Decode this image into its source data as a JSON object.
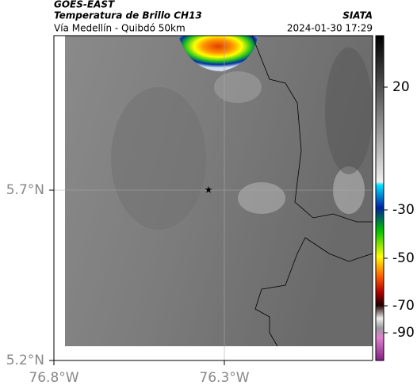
{
  "header": {
    "title": "GOES-EAST",
    "subtitle": "Temperatura de Brillo CH13",
    "source": "SIATA",
    "region": "Vía Medellín - Quibdó 50km",
    "datetime": "2024-01-30 17:29"
  },
  "map": {
    "lat_ticks": [
      "5.7°N",
      "5.2°N"
    ],
    "lon_ticks": [
      "76.8°W",
      "76.3°W"
    ]
  },
  "colorbar": {
    "ticks": [
      "20",
      "-30",
      "-50",
      "-70",
      "-90"
    ]
  }
}
